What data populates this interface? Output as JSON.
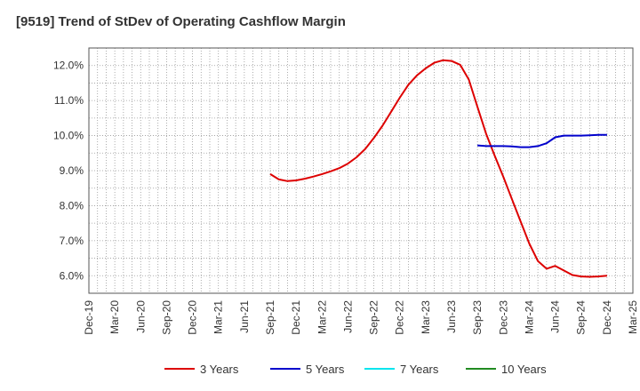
{
  "chart_data": {
    "type": "line",
    "title": "[9519]  Trend of StDev of Operating Cashflow Margin",
    "xlabel": "",
    "ylabel": "",
    "x_ticks": [
      "Dec-19",
      "Mar-20",
      "Jun-20",
      "Sep-20",
      "Dec-20",
      "Mar-21",
      "Jun-21",
      "Sep-21",
      "Dec-21",
      "Mar-22",
      "Jun-22",
      "Sep-22",
      "Dec-22",
      "Mar-23",
      "Jun-23",
      "Sep-23",
      "Dec-23",
      "Mar-24",
      "Jun-24",
      "Sep-24",
      "Dec-24",
      "Mar-25"
    ],
    "y_ticks": [
      "6.0%",
      "7.0%",
      "8.0%",
      "9.0%",
      "10.0%",
      "11.0%",
      "12.0%"
    ],
    "ylim": [
      5.5,
      12.5
    ],
    "x_range_months": [
      0,
      63
    ],
    "grid": true,
    "legend_position": "bottom",
    "series": [
      {
        "name": "3 Years",
        "color": "#dd0000",
        "points": [
          [
            21,
            8.9
          ],
          [
            22,
            8.75
          ],
          [
            23,
            8.7
          ],
          [
            24,
            8.72
          ],
          [
            25,
            8.77
          ],
          [
            26,
            8.83
          ],
          [
            27,
            8.9
          ],
          [
            28,
            8.98
          ],
          [
            29,
            9.07
          ],
          [
            30,
            9.2
          ],
          [
            31,
            9.38
          ],
          [
            32,
            9.62
          ],
          [
            33,
            9.93
          ],
          [
            34,
            10.28
          ],
          [
            35,
            10.68
          ],
          [
            36,
            11.08
          ],
          [
            37,
            11.45
          ],
          [
            38,
            11.72
          ],
          [
            39,
            11.92
          ],
          [
            40,
            12.08
          ],
          [
            41,
            12.15
          ],
          [
            42,
            12.13
          ],
          [
            43,
            12.02
          ],
          [
            44,
            11.6
          ],
          [
            45,
            10.82
          ],
          [
            46,
            10.05
          ],
          [
            47,
            9.42
          ],
          [
            48,
            8.82
          ],
          [
            49,
            8.18
          ],
          [
            50,
            7.55
          ],
          [
            51,
            6.92
          ],
          [
            52,
            6.42
          ],
          [
            53,
            6.2
          ],
          [
            54,
            6.28
          ],
          [
            55,
            6.15
          ],
          [
            56,
            6.02
          ],
          [
            57,
            5.98
          ],
          [
            58,
            5.97
          ],
          [
            59,
            5.98
          ],
          [
            60,
            6.0
          ]
        ]
      },
      {
        "name": "5 Years",
        "color": "#0000cc",
        "points": [
          [
            45,
            9.72
          ],
          [
            46,
            9.7
          ],
          [
            47,
            9.7
          ],
          [
            48,
            9.7
          ],
          [
            49,
            9.69
          ],
          [
            50,
            9.67
          ],
          [
            51,
            9.67
          ],
          [
            52,
            9.7
          ],
          [
            53,
            9.78
          ],
          [
            54,
            9.95
          ],
          [
            55,
            10.0
          ],
          [
            56,
            10.0
          ],
          [
            57,
            10.0
          ],
          [
            58,
            10.01
          ],
          [
            59,
            10.02
          ],
          [
            60,
            10.02
          ]
        ]
      },
      {
        "name": "7 Years",
        "color": "#00e5ee",
        "points": []
      },
      {
        "name": "10 Years",
        "color": "#228b22",
        "points": []
      }
    ]
  }
}
